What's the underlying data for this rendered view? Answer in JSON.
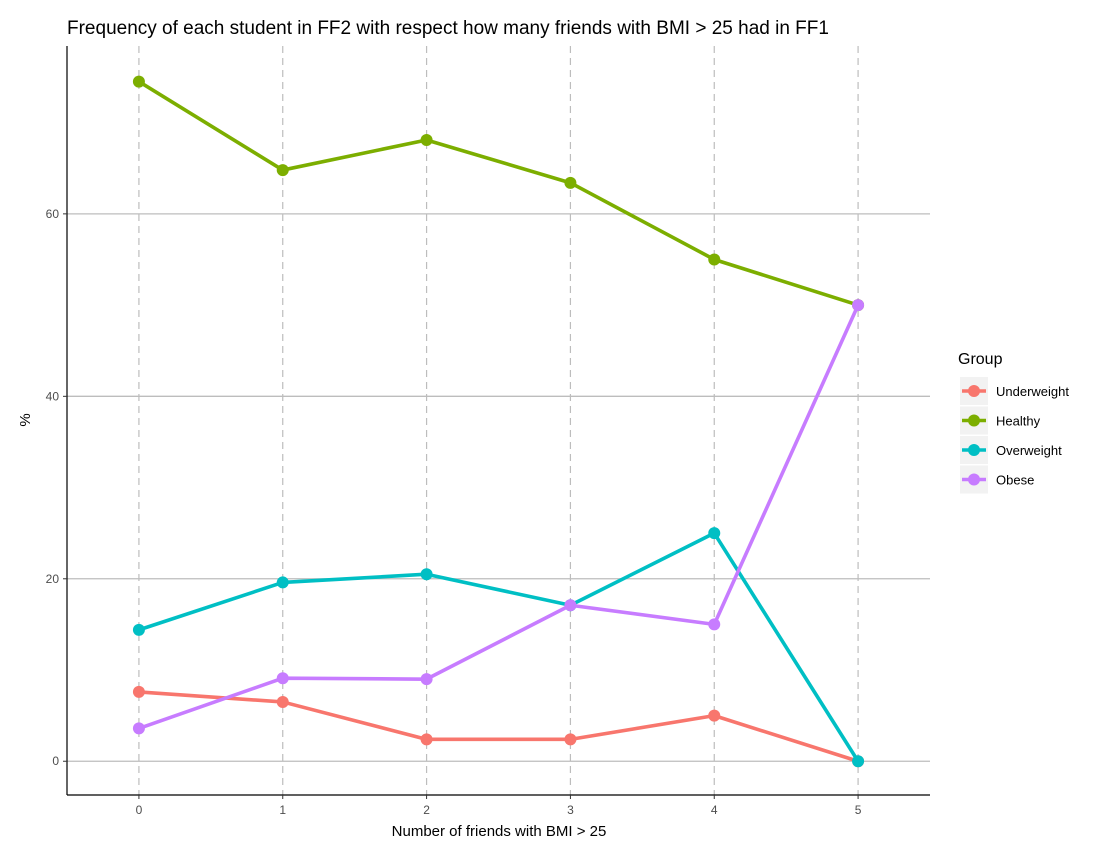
{
  "chart_data": {
    "type": "line",
    "title": "Frequency of each student in FF2 with respect how many friends with BMI > 25 had in FF1",
    "xlabel": "Number of friends with BMI > 25",
    "ylabel": "%",
    "x": [
      0,
      1,
      2,
      3,
      4,
      5
    ],
    "x_ticks": [
      "0",
      "1",
      "2",
      "3",
      "4",
      "5"
    ],
    "y_ticks": [
      "0",
      "20",
      "40",
      "60"
    ],
    "y_tick_values": [
      0,
      20,
      40,
      60
    ],
    "xlim": [
      -0.5,
      5.5
    ],
    "ylim": [
      -3.7,
      78.4
    ],
    "grid": {
      "horizontal": "solid",
      "vertical": "dashed"
    },
    "legend": {
      "title": "Group",
      "placement": "right"
    },
    "series": [
      {
        "name": "Underweight",
        "color": "#F8766D",
        "values": [
          7.6,
          6.5,
          2.4,
          2.4,
          5.0,
          0.0
        ]
      },
      {
        "name": "Healthy",
        "color": "#7CAE00",
        "values": [
          74.5,
          64.8,
          68.1,
          63.4,
          55.0,
          50.0
        ]
      },
      {
        "name": "Overweight",
        "color": "#00BFC4",
        "values": [
          14.4,
          19.6,
          20.5,
          17.1,
          25.0,
          0.0
        ]
      },
      {
        "name": "Obese",
        "color": "#C77CFF",
        "values": [
          3.6,
          9.1,
          9.0,
          17.1,
          15.0,
          50.0
        ]
      }
    ]
  }
}
